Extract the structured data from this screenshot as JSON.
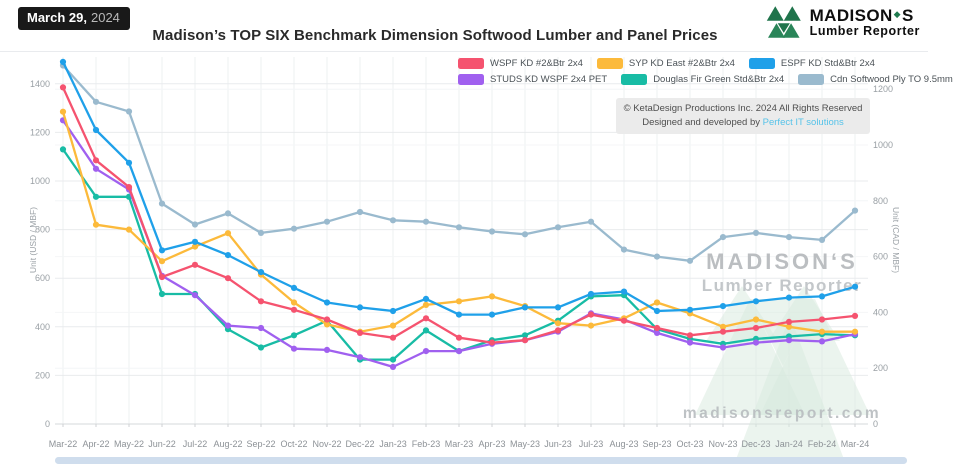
{
  "header": {
    "date_badge": {
      "bold": "March 29,",
      "year": "2024"
    },
    "title": "Madison’s TOP SIX Benchmark Dimension Softwood Lumber and Panel Prices",
    "logo": {
      "name_pre": "MADISON",
      "diamond": "◆",
      "name_post": "S",
      "tagline": "Lumber Reporter",
      "green": "#1F7A4E"
    }
  },
  "copyright": {
    "line1": "© KetaDesign Productions Inc. 2024 All Rights Reserved",
    "line2_prefix": "Designed and developed by ",
    "line2_link": "Perfect IT solutions",
    "link_color": "#56C3E9"
  },
  "watermark": {
    "brand": "MADISON‘S",
    "tagline": "Lumber Reporter",
    "website": "madisonsreport.com"
  },
  "chart_data": {
    "type": "line",
    "title": "Madison’s TOP SIX Benchmark Dimension Softwood Lumber and Panel Prices",
    "grid": true,
    "legend_position": "top",
    "categories": [
      "Mar-22",
      "Apr-22",
      "May-22",
      "Jun-22",
      "Jul-22",
      "Aug-22",
      "Sep-22",
      "Oct-22",
      "Nov-22",
      "Dec-22",
      "Jan-23",
      "Feb-23",
      "Mar-23",
      "Apr-23",
      "May-23",
      "Jun-23",
      "Jul-23",
      "Aug-23",
      "Sep-23",
      "Oct-23",
      "Nov-23",
      "Dec-23",
      "Jan-24",
      "Feb-24",
      "Mar-24"
    ],
    "axes": {
      "left": {
        "title": "Unit (USD / MBF)",
        "min": 0,
        "max": 1500,
        "tick_step": 200,
        "tick_max": 1400
      },
      "right": {
        "title": "Unit (CAD / MBF)",
        "min": 0,
        "max": 1310,
        "tick_step": 200,
        "tick_max": 1200
      }
    },
    "series": [
      {
        "name": "WSPF KD #2&Btr 2x4",
        "color": "#F5536F",
        "axis": "left",
        "values": [
          1385,
          1085,
          975,
          605,
          655,
          600,
          505,
          470,
          430,
          375,
          355,
          435,
          355,
          335,
          345,
          385,
          450,
          425,
          395,
          365,
          380,
          395,
          420,
          430,
          445
        ]
      },
      {
        "name": "SYP KD East #2&Btr 2x4",
        "color": "#FCBA3B",
        "axis": "left",
        "values": [
          1285,
          820,
          800,
          670,
          730,
          785,
          615,
          500,
          410,
          380,
          405,
          490,
          505,
          525,
          485,
          415,
          405,
          435,
          500,
          455,
          400,
          430,
          400,
          380,
          380
        ]
      },
      {
        "name": "ESPF KD Std&Btr 2x4",
        "color": "#1FA0E9",
        "axis": "left",
        "values": [
          1490,
          1210,
          1075,
          715,
          750,
          695,
          625,
          560,
          500,
          480,
          465,
          515,
          450,
          450,
          480,
          480,
          535,
          545,
          465,
          470,
          485,
          505,
          520,
          525,
          565
        ]
      },
      {
        "name": "STUDS KD WSPF 2x4 PET",
        "color": "#A060EF",
        "axis": "left",
        "values": [
          1250,
          1050,
          965,
          610,
          530,
          405,
          395,
          310,
          305,
          275,
          235,
          300,
          300,
          330,
          345,
          380,
          455,
          430,
          375,
          335,
          315,
          335,
          345,
          340,
          370
        ]
      },
      {
        "name": "Douglas Fir Green Std&Btr 2x4",
        "color": "#18BCA5",
        "axis": "left",
        "values": [
          1130,
          935,
          935,
          535,
          535,
          390,
          315,
          365,
          425,
          265,
          265,
          385,
          300,
          345,
          365,
          425,
          525,
          530,
          390,
          350,
          330,
          350,
          360,
          370,
          365
        ]
      },
      {
        "name": "Cdn Softwood Ply TO 9.5mm",
        "color": "#9ABACE",
        "axis": "right",
        "values": [
          1285,
          1155,
          1120,
          790,
          715,
          755,
          685,
          700,
          725,
          760,
          730,
          725,
          705,
          690,
          680,
          705,
          725,
          625,
          600,
          585,
          670,
          685,
          670,
          660,
          765
        ]
      }
    ]
  }
}
